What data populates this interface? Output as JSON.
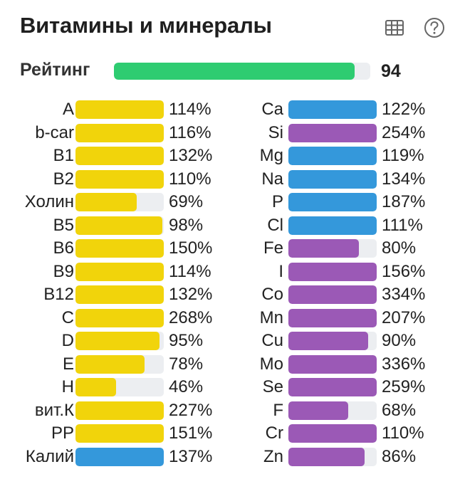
{
  "title": "Витамины и минералы",
  "icons": {
    "table": "table-icon",
    "help": "help-circle-icon"
  },
  "rating": {
    "label": "Рейтинг",
    "value": "94",
    "fraction": 0.94,
    "color": "#2ecc71"
  },
  "colors": {
    "vitamin": "#f1d40b",
    "mineral": "#3498db",
    "trace": "#9b59b6",
    "track": "#eceef1"
  },
  "vitamins": [
    {
      "name": "A",
      "percent": "114%",
      "fill": 1.0,
      "color": "#f1d40b"
    },
    {
      "name": "b-car",
      "percent": "116%",
      "fill": 1.0,
      "color": "#f1d40b"
    },
    {
      "name": "B1",
      "percent": "132%",
      "fill": 1.0,
      "color": "#f1d40b"
    },
    {
      "name": "B2",
      "percent": "110%",
      "fill": 1.0,
      "color": "#f1d40b"
    },
    {
      "name": "Холин",
      "percent": "69%",
      "fill": 0.69,
      "color": "#f1d40b"
    },
    {
      "name": "B5",
      "percent": "98%",
      "fill": 0.98,
      "color": "#f1d40b"
    },
    {
      "name": "B6",
      "percent": "150%",
      "fill": 1.0,
      "color": "#f1d40b"
    },
    {
      "name": "B9",
      "percent": "114%",
      "fill": 1.0,
      "color": "#f1d40b"
    },
    {
      "name": "B12",
      "percent": "132%",
      "fill": 1.0,
      "color": "#f1d40b"
    },
    {
      "name": "C",
      "percent": "268%",
      "fill": 1.0,
      "color": "#f1d40b"
    },
    {
      "name": "D",
      "percent": "95%",
      "fill": 0.95,
      "color": "#f1d40b"
    },
    {
      "name": "E",
      "percent": "78%",
      "fill": 0.78,
      "color": "#f1d40b"
    },
    {
      "name": "H",
      "percent": "46%",
      "fill": 0.46,
      "color": "#f1d40b"
    },
    {
      "name": "вит.К",
      "percent": "227%",
      "fill": 1.0,
      "color": "#f1d40b"
    },
    {
      "name": "PP",
      "percent": "151%",
      "fill": 1.0,
      "color": "#f1d40b"
    },
    {
      "name": "Калий",
      "percent": "137%",
      "fill": 1.0,
      "color": "#3498db"
    }
  ],
  "minerals": [
    {
      "name": "Ca",
      "percent": "122%",
      "fill": 1.0,
      "color": "#3498db"
    },
    {
      "name": "Si",
      "percent": "254%",
      "fill": 1.0,
      "color": "#9b59b6"
    },
    {
      "name": "Mg",
      "percent": "119%",
      "fill": 1.0,
      "color": "#3498db"
    },
    {
      "name": "Na",
      "percent": "134%",
      "fill": 1.0,
      "color": "#3498db"
    },
    {
      "name": "P",
      "percent": "187%",
      "fill": 1.0,
      "color": "#3498db"
    },
    {
      "name": "Cl",
      "percent": "111%",
      "fill": 1.0,
      "color": "#3498db"
    },
    {
      "name": "Fe",
      "percent": "80%",
      "fill": 0.8,
      "color": "#9b59b6"
    },
    {
      "name": "I",
      "percent": "156%",
      "fill": 1.0,
      "color": "#9b59b6"
    },
    {
      "name": "Co",
      "percent": "334%",
      "fill": 1.0,
      "color": "#9b59b6"
    },
    {
      "name": "Mn",
      "percent": "207%",
      "fill": 1.0,
      "color": "#9b59b6"
    },
    {
      "name": "Cu",
      "percent": "90%",
      "fill": 0.9,
      "color": "#9b59b6"
    },
    {
      "name": "Mo",
      "percent": "336%",
      "fill": 1.0,
      "color": "#9b59b6"
    },
    {
      "name": "Se",
      "percent": "259%",
      "fill": 1.0,
      "color": "#9b59b6"
    },
    {
      "name": "F",
      "percent": "68%",
      "fill": 0.68,
      "color": "#9b59b6"
    },
    {
      "name": "Cr",
      "percent": "110%",
      "fill": 1.0,
      "color": "#9b59b6"
    },
    {
      "name": "Zn",
      "percent": "86%",
      "fill": 0.86,
      "color": "#9b59b6"
    }
  ]
}
